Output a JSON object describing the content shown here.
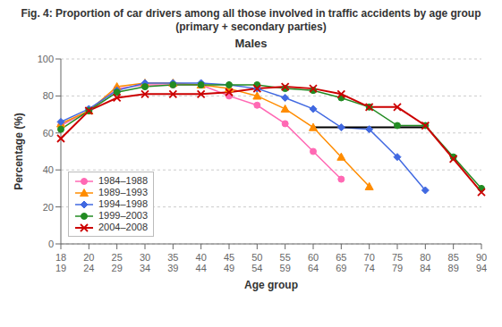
{
  "chart_data": {
    "type": "line",
    "title": "Fig. 4: Proportion of car drivers among all those involved in traffic accidents by age group\n(primary + secondary parties)",
    "subtitle": "Males",
    "y_label": "Percentage  (%)",
    "x_label": "Age group",
    "categories": [
      "18\n19",
      "20\n24",
      "25\n29",
      "30\n34",
      "35\n39",
      "40\n44",
      "45\n49",
      "50\n54",
      "55\n59",
      "60\n64",
      "65\n69",
      "70\n74",
      "75\n79",
      "80\n84",
      "85\n89",
      "90\n94"
    ],
    "series": [
      {
        "name": "1984–1988",
        "color": "#ff69b4",
        "marker": "circle",
        "values": [
          64,
          72,
          84,
          86,
          86,
          86,
          80,
          75,
          65,
          50,
          35,
          null,
          null,
          null,
          null,
          null
        ]
      },
      {
        "name": "1989–1993",
        "color": "#ff8c00",
        "marker": "triangle",
        "values": [
          65,
          72,
          85,
          87,
          87,
          86,
          84,
          80,
          73,
          63,
          47,
          31,
          null,
          null,
          null,
          null
        ]
      },
      {
        "name": "1994–1998",
        "color": "#4169e1",
        "marker": "diamond",
        "values": [
          66,
          73,
          83,
          87,
          87,
          87,
          86,
          84,
          79,
          73,
          63,
          62,
          47,
          29,
          null,
          null
        ]
      },
      {
        "name": "1999–2003",
        "color": "#228b22",
        "marker": "circle",
        "values": [
          62,
          72,
          82,
          85,
          86,
          86,
          86,
          86,
          84,
          83,
          79,
          74,
          64,
          64,
          47,
          30
        ]
      },
      {
        "name": "2004–2008",
        "color": "#cc0000",
        "marker": "cross",
        "values": [
          57,
          72,
          79,
          81,
          81,
          81,
          82,
          84,
          85,
          84,
          81,
          74,
          74,
          64,
          46,
          28
        ]
      }
    ],
    "reference_line": {
      "from": "60\n64",
      "to": "80\n84",
      "y": 63,
      "color": "#000000"
    },
    "ylim": [
      0,
      100
    ],
    "yticks": [
      0,
      20,
      40,
      60,
      80,
      100
    ],
    "grid": true,
    "legend": "lower left"
  }
}
